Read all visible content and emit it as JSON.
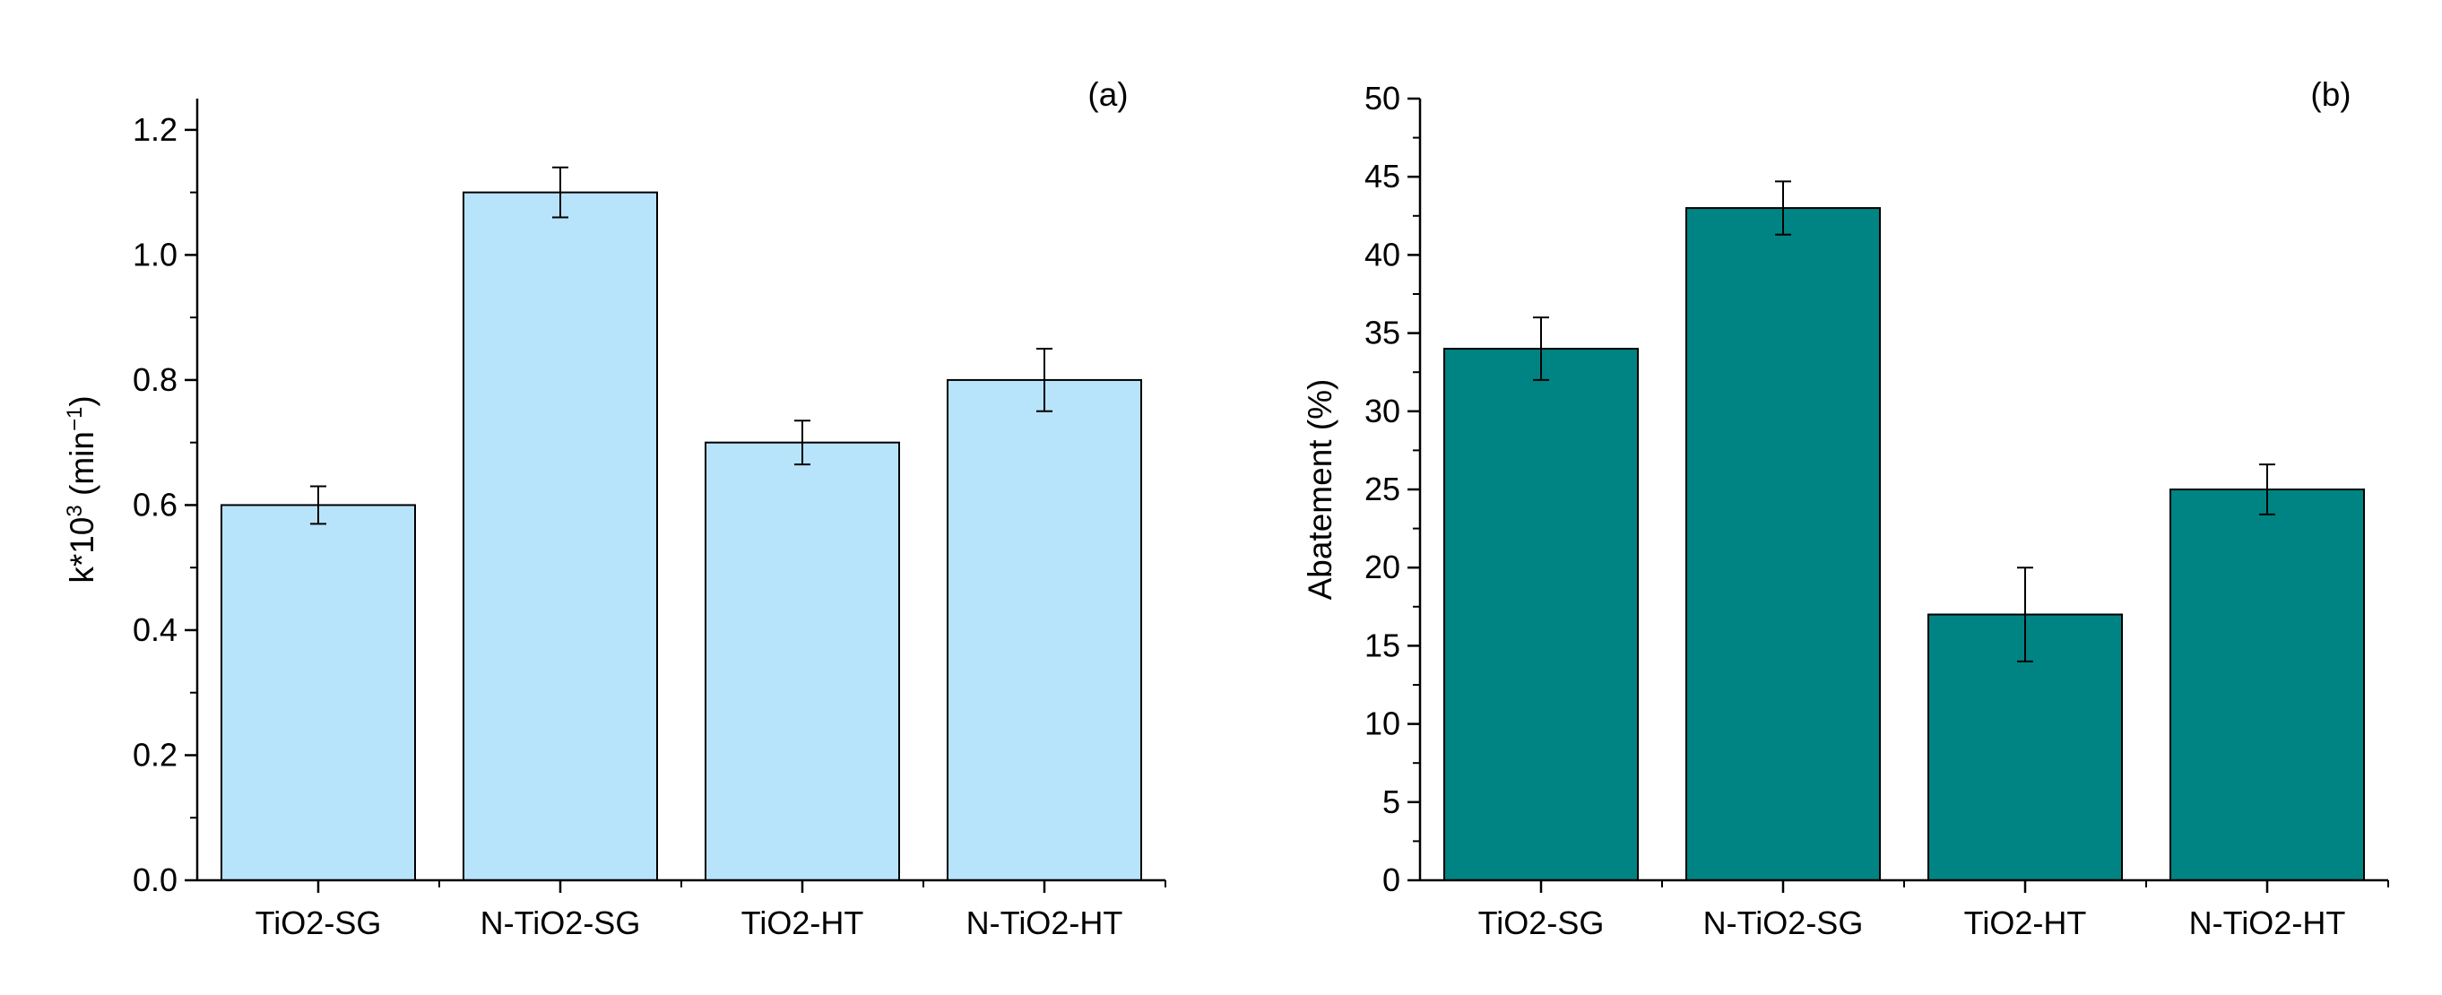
{
  "chart_data": [
    {
      "type": "bar",
      "panel_label": "(a)",
      "categories": [
        "TiO2-SG",
        "N-TiO2-SG",
        "TiO2-HT",
        "N-TiO2-HT"
      ],
      "values": [
        0.6,
        1.1,
        0.7,
        0.8
      ],
      "error": [
        0.03,
        0.04,
        0.035,
        0.05
      ],
      "ylabel": {
        "base": "k*10",
        "exp": "3",
        "unit_open": " (min",
        "unit_exp": "−1",
        "unit_close": ")"
      },
      "xlabel": "",
      "ylim": [
        0,
        1.25
      ],
      "yticks": [
        0.0,
        0.2,
        0.4,
        0.6,
        0.8,
        1.0,
        1.2
      ],
      "ytick_labels": [
        "0.0",
        "0.2",
        "0.4",
        "0.6",
        "0.8",
        "1.0",
        "1.2"
      ],
      "yminor": [
        0.1,
        0.3,
        0.5,
        0.7,
        0.9,
        1.1
      ],
      "bar_color": "#b7e3fb",
      "edge_color": "#000000"
    },
    {
      "type": "bar",
      "panel_label": "(b)",
      "categories": [
        "TiO2-SG",
        "N-TiO2-SG",
        "TiO2-HT",
        "N-TiO2-HT"
      ],
      "values": [
        34,
        43,
        17,
        25
      ],
      "error": [
        2,
        1.7,
        3,
        1.6
      ],
      "ylabel": {
        "text": "Abatement (%)"
      },
      "xlabel": "",
      "ylim": [
        0,
        50
      ],
      "yticks": [
        0,
        5,
        10,
        15,
        20,
        25,
        30,
        35,
        40,
        45,
        50
      ],
      "ytick_labels": [
        "0",
        "5",
        "10",
        "15",
        "20",
        "25",
        "30",
        "35",
        "40",
        "45",
        "50"
      ],
      "yminor": [
        2.5,
        7.5,
        12.5,
        17.5,
        22.5,
        27.5,
        32.5,
        37.5,
        42.5,
        47.5
      ],
      "bar_color": "#008483",
      "edge_color": "#000000"
    }
  ]
}
